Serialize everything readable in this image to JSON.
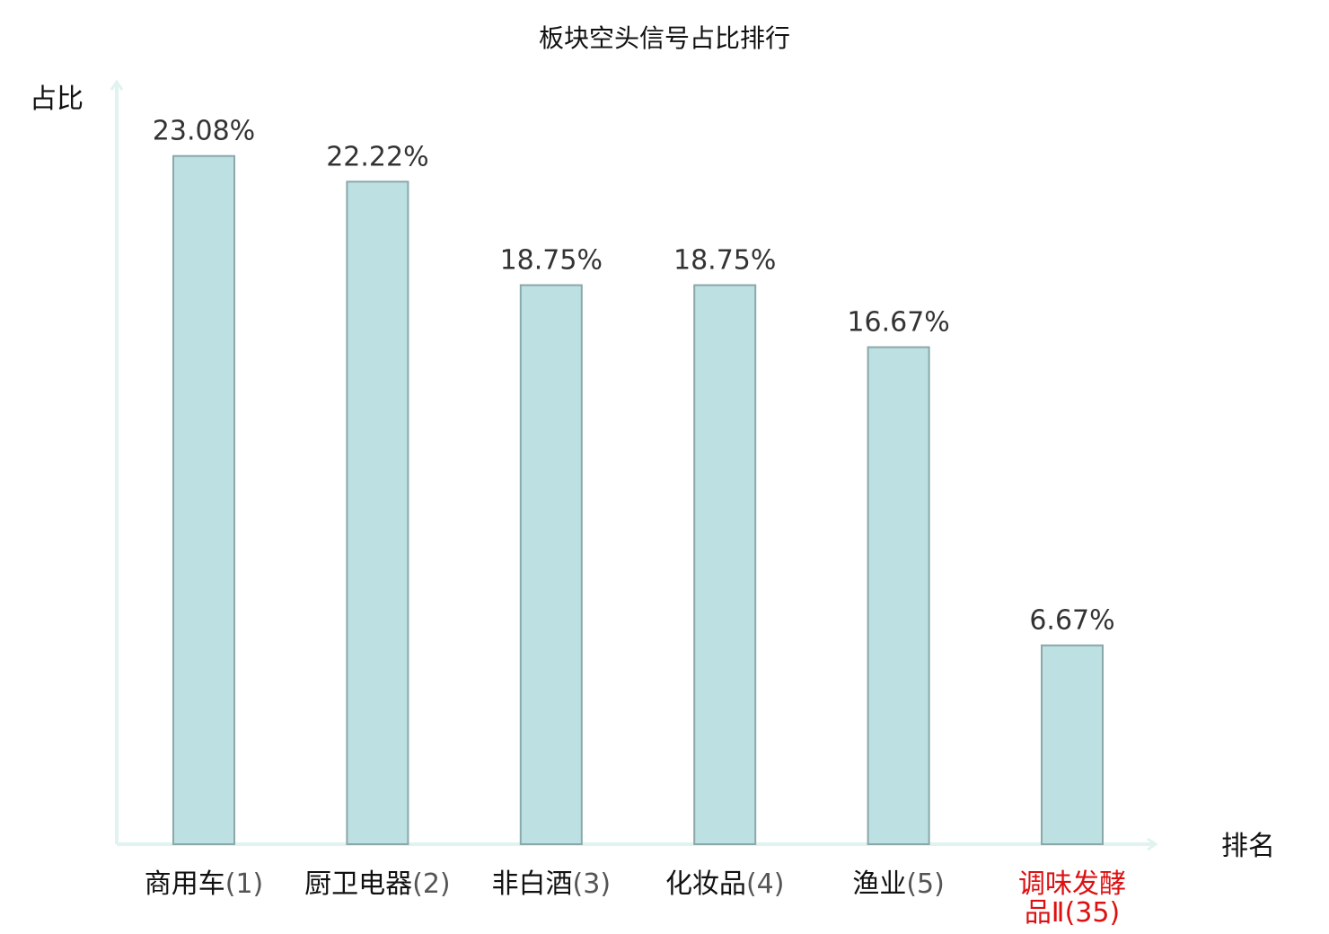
{
  "chart_data": {
    "type": "bar",
    "title": "板块空头信号占比排行",
    "ylabel": "占比",
    "xlabel": "排名",
    "ylim": [
      0,
      25.5
    ],
    "grid": false,
    "categories": [
      {
        "name": "商用车",
        "rank": "(1)"
      },
      {
        "name": "厨卫电器",
        "rank": "(2)"
      },
      {
        "name": "非白酒",
        "rank": "(3)"
      },
      {
        "name": "化妆品",
        "rank": "(4)"
      },
      {
        "name": "渔业",
        "rank": "(5)"
      },
      {
        "name": "调味发酵品Ⅱ",
        "rank": "(35)",
        "highlight": true
      }
    ],
    "values": [
      23.08,
      22.22,
      18.75,
      18.75,
      16.67,
      6.67
    ],
    "value_labels": [
      "23.08%",
      "22.22%",
      "18.75%",
      "18.75%",
      "16.67%",
      "6.67%"
    ],
    "colors": {
      "bar_fill": "#bde0e3",
      "bar_stroke": "#8aa8a8",
      "axis": "#e0f3f0",
      "highlight": "#dd1111"
    }
  }
}
